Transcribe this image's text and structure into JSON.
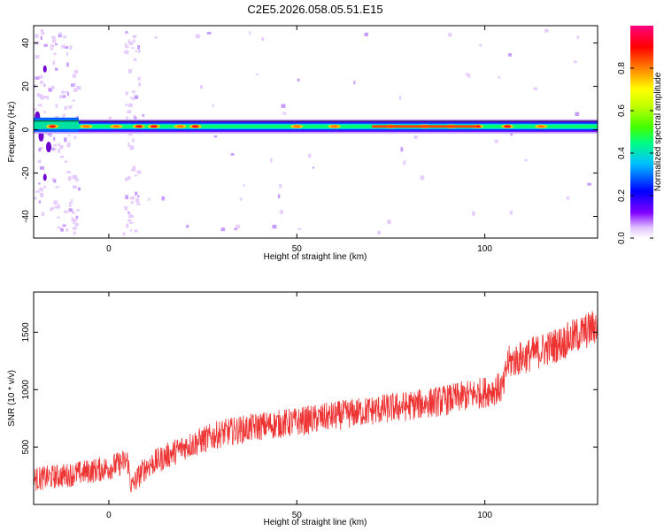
{
  "title": "C2E5.2026.058.05.51.E15",
  "chart_data": [
    {
      "type": "heatmap",
      "xlabel": "Height of straight line (km)",
      "ylabel": "Frequency (Hz)",
      "xlim": [
        -20,
        130
      ],
      "ylim": [
        -50,
        48
      ],
      "x_ticks": [
        0,
        50,
        100
      ],
      "y_ticks": [
        -40,
        -20,
        0,
        20,
        40
      ],
      "x_tick_labels": [
        "0",
        "50",
        "100"
      ],
      "y_tick_labels": [
        "-40",
        "-20",
        "0",
        "20",
        "40"
      ],
      "colorbar": {
        "label": "Normalized spectral amplitude",
        "range": [
          0,
          1
        ],
        "ticks": [
          0.0,
          0.2,
          0.4,
          0.6,
          0.8
        ],
        "tick_labels": [
          "0.0",
          "0.2",
          "0.4",
          "0.6",
          "0.8"
        ],
        "colormap": [
          "#ffffff",
          "#d8b0ff",
          "#8000ff",
          "#0000ff",
          "#00c0ff",
          "#00ff80",
          "#40ff00",
          "#c0ff00",
          "#ffff00",
          "#ff8000",
          "#ff0000",
          "#ff0080"
        ]
      },
      "band": {
        "description_center_freq_hz": 1.5,
        "segments": [
          {
            "x": [
              -20,
              -8
            ],
            "freq": [
              0,
              4
            ],
            "level": 0.5
          },
          {
            "x": [
              -8,
              130
            ],
            "freq": [
              0,
              3
            ],
            "level": 0.45
          },
          {
            "x": [
              70,
              98
            ],
            "freq": [
              1,
              3
            ],
            "level": 0.9
          }
        ]
      },
      "grid": false
    },
    {
      "type": "line",
      "xlabel": "Height of straight line (km)",
      "ylabel": "SNR (10 * v/v)",
      "xlim": [
        -20,
        130
      ],
      "ylim": [
        0,
        1850
      ],
      "x_ticks": [
        0,
        50,
        100
      ],
      "y_ticks": [
        500,
        1000,
        1500
      ],
      "x_tick_labels": [
        "0",
        "50",
        "100"
      ],
      "y_tick_labels": [
        "500",
        "1000",
        "1500"
      ],
      "color": "#ee3333",
      "trend": {
        "x": [
          -20,
          -10,
          0,
          5,
          6,
          8,
          10,
          20,
          30,
          40,
          50,
          60,
          70,
          80,
          90,
          100,
          105,
          106,
          110,
          120,
          130
        ],
        "y": [
          220,
          260,
          320,
          380,
          150,
          250,
          330,
          500,
          620,
          680,
          720,
          770,
          820,
          860,
          910,
          980,
          1020,
          1230,
          1280,
          1400,
          1560
        ]
      },
      "noise_amplitude": 160,
      "grid": false
    }
  ]
}
